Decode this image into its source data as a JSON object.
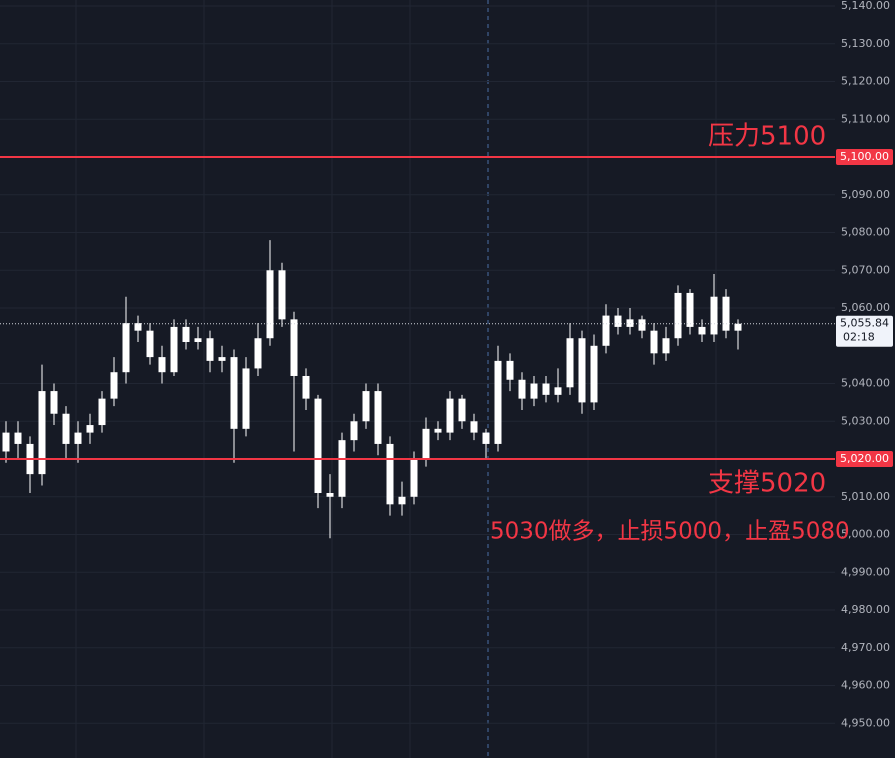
{
  "chart_data": {
    "type": "candlestick",
    "open": [
      5022,
      5027,
      5024,
      5016,
      5038,
      5032,
      5024,
      5027,
      5029,
      5036,
      5043,
      5056,
      5054,
      5047,
      5043,
      5055,
      5051,
      5052,
      5046,
      5047,
      5028,
      5044,
      5052,
      5070,
      5057,
      5042,
      5036,
      5011,
      5010,
      5025,
      5030,
      5038,
      5024,
      5008,
      5010,
      5020,
      5028,
      5027,
      5036,
      5030,
      5027,
      5024,
      5046,
      5041,
      5036,
      5040,
      5037,
      5039,
      5052,
      5035,
      5050,
      5058,
      5055,
      5057,
      5054,
      5048,
      5052,
      5064,
      5055,
      5053,
      5063,
      5054
    ],
    "high": [
      5030,
      5030,
      5026,
      5045,
      5040,
      5034,
      5030,
      5032,
      5038,
      5047,
      5063,
      5058,
      5056,
      5050,
      5057,
      5057,
      5055,
      5054,
      5050,
      5049,
      5047,
      5056,
      5078,
      5072,
      5059,
      5044,
      5037,
      5016,
      5027,
      5032,
      5040,
      5040,
      5026,
      5014,
      5022,
      5031,
      5030,
      5038,
      5037,
      5032,
      5028,
      5050,
      5048,
      5043,
      5042,
      5042,
      5044,
      5056,
      5054,
      5053,
      5061,
      5060,
      5060,
      5058,
      5056,
      5055,
      5066,
      5065,
      5057,
      5069,
      5065,
      5057
    ],
    "low": [
      5019,
      5020,
      5011,
      5013,
      5029,
      5020,
      5019,
      5024,
      5027,
      5034,
      5040,
      5051,
      5045,
      5040,
      5042,
      5049,
      5049,
      5043,
      5043,
      5019,
      5026,
      5042,
      5050,
      5055,
      5022,
      5033,
      5007,
      4999,
      5007,
      5022,
      5028,
      5021,
      5005,
      5005,
      5008,
      5018,
      5025,
      5025,
      5028,
      5025,
      5020,
      5022,
      5038,
      5033,
      5034,
      5035,
      5035,
      5037,
      5032,
      5033,
      5048,
      5053,
      5053,
      5052,
      5045,
      5046,
      5050,
      5053,
      5051,
      5051,
      5052,
      5049
    ],
    "close": [
      5027,
      5024,
      5016,
      5038,
      5032,
      5024,
      5027,
      5029,
      5036,
      5043,
      5056,
      5054,
      5047,
      5043,
      5055,
      5051,
      5052,
      5046,
      5047,
      5028,
      5044,
      5052,
      5070,
      5057,
      5042,
      5036,
      5011,
      5010,
      5025,
      5030,
      5038,
      5024,
      5008,
      5010,
      5020,
      5028,
      5027,
      5036,
      5030,
      5027,
      5024,
      5046,
      5041,
      5036,
      5040,
      5037,
      5039,
      5052,
      5035,
      5050,
      5058,
      5055,
      5057,
      5054,
      5048,
      5052,
      5064,
      5055,
      5053,
      5063,
      5054,
      5055.84
    ],
    "up_color": "#ffffff",
    "down_color": "#ffffff",
    "ylim": [
      4940.8,
      5141.6
    ],
    "yticks": [
      {
        "value": 5140,
        "label": "5,140.00"
      },
      {
        "value": 5130,
        "label": "5,130.00"
      },
      {
        "value": 5120,
        "label": "5,120.00"
      },
      {
        "value": 5110,
        "label": "5,110.00"
      },
      {
        "value": 5090,
        "label": "5,090.00"
      },
      {
        "value": 5080,
        "label": "5,080.00"
      },
      {
        "value": 5070,
        "label": "5,070.00"
      },
      {
        "value": 5060,
        "label": "5,060.00"
      },
      {
        "value": 5040,
        "label": "5,040.00"
      },
      {
        "value": 5030,
        "label": "5,030.00"
      },
      {
        "value": 5010,
        "label": "5,010.00"
      },
      {
        "value": 5000,
        "label": "5,000.00"
      },
      {
        "value": 4990,
        "label": "4,990.00"
      },
      {
        "value": 4980,
        "label": "4,980.00"
      },
      {
        "value": 4970,
        "label": "4,970.00"
      },
      {
        "value": 4960,
        "label": "4,960.00"
      },
      {
        "value": 4950,
        "label": "4,950.00"
      }
    ],
    "grid": true,
    "price_lines": [
      {
        "value": 5100,
        "label": "5,100.00",
        "color": "#f23645"
      },
      {
        "value": 5020,
        "label": "5,020.00",
        "color": "#f23645"
      }
    ],
    "current_price": {
      "value": 5055.84,
      "label": "5,055.84",
      "countdown": "02:18"
    },
    "annotations": [
      "压力5100",
      "支撑5020",
      "5030做多，止损5000，止盈5080"
    ]
  }
}
